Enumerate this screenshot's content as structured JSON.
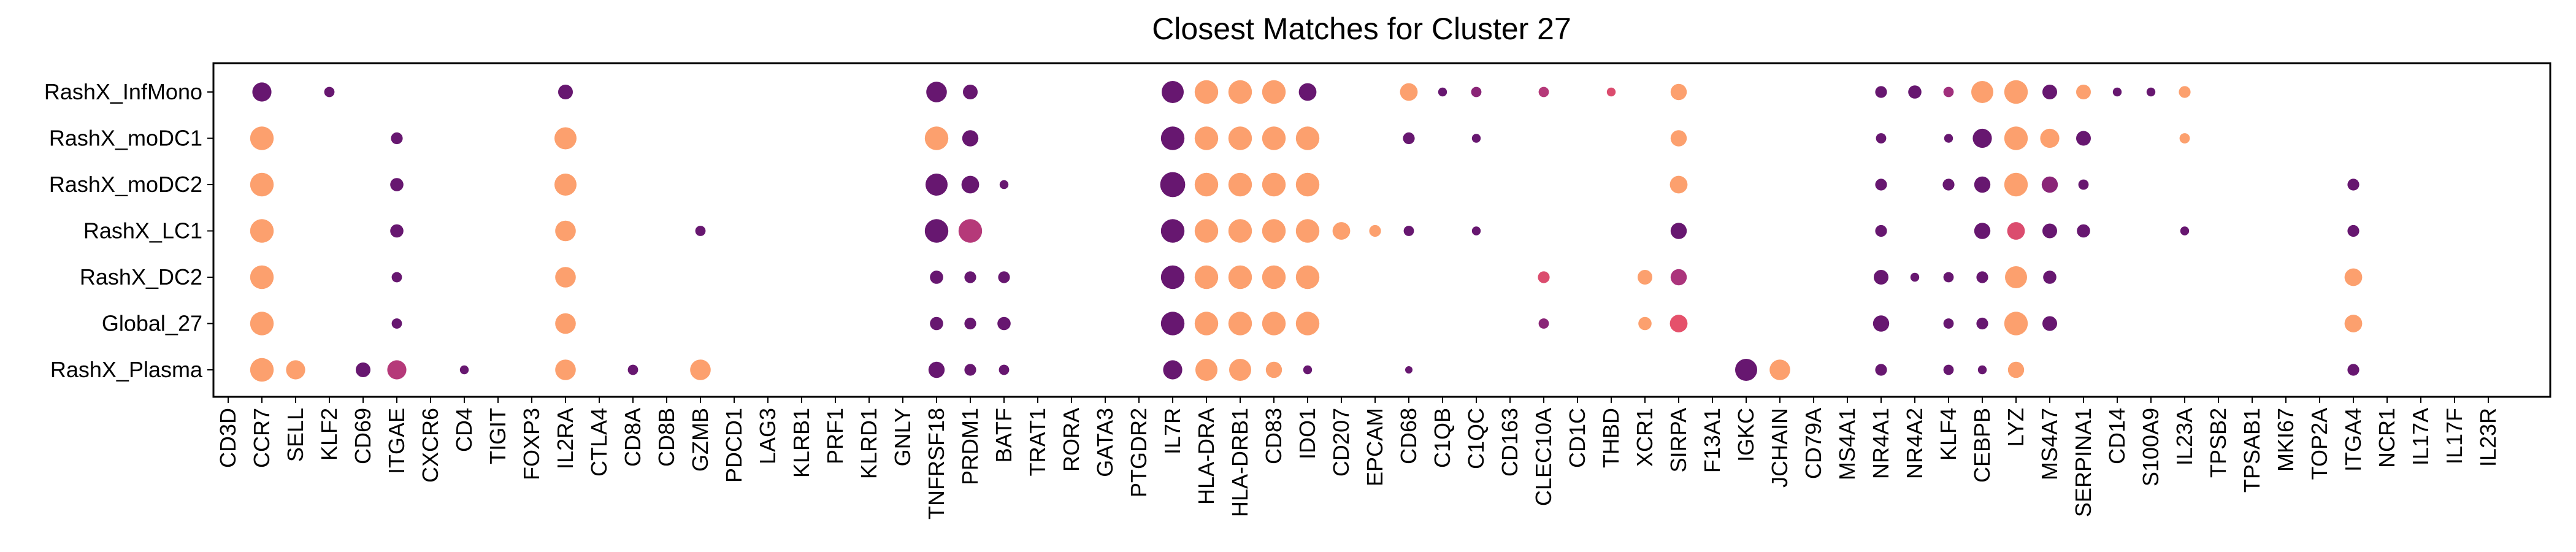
{
  "chart_data": {
    "type": "dotplot",
    "title": "Closest Matches for Cluster 27",
    "xlabel": "",
    "ylabel": "",
    "grid": false,
    "legend": "none",
    "rows": [
      "RashX_InfMono",
      "RashX_moDC1",
      "RashX_moDC2",
      "RashX_LC1",
      "RashX_DC2",
      "Global_27",
      "RashX_Plasma"
    ],
    "columns": [
      "CD3D",
      "CCR7",
      "SELL",
      "KLF2",
      "CD69",
      "ITGAE",
      "CXCR6",
      "CD4",
      "TIGIT",
      "FOXP3",
      "IL2RA",
      "CTLA4",
      "CD8A",
      "CD8B",
      "GZMB",
      "PDCD1",
      "LAG3",
      "KLRB1",
      "PRF1",
      "KLRD1",
      "GNLY",
      "TNFRSF18",
      "PRDM1",
      "BATF",
      "TRAT1",
      "RORA",
      "GATA3",
      "PTGDR2",
      "IL7R",
      "HLA-DRA",
      "HLA-DRB1",
      "CD83",
      "IDO1",
      "CD207",
      "EPCAM",
      "CD68",
      "C1QB",
      "C1QC",
      "CD163",
      "CLEC10A",
      "CD1C",
      "THBD",
      "XCR1",
      "SIRPA",
      "F13A1",
      "IGKC",
      "JCHAIN",
      "CD79A",
      "MS4A1",
      "NR4A1",
      "NR4A2",
      "KLF4",
      "CEBPB",
      "LYZ",
      "MS4A7",
      "SERPINA1",
      "CD14",
      "S100A9",
      "IL23A",
      "TPSB2",
      "TPSAB1",
      "MKI67",
      "TOP2A",
      "ITGA4",
      "NCR1",
      "IL17A",
      "IL17F",
      "IL23R"
    ],
    "color_scale": [
      "#5c126e",
      "#a8327d",
      "#e8536a",
      "#fca06e"
    ],
    "points": [
      {
        "row": "RashX_InfMono",
        "col": "CCR7",
        "size": 0.65,
        "color": 0.05
      },
      {
        "row": "RashX_InfMono",
        "col": "KLF2",
        "size": 0.35,
        "color": 0.05
      },
      {
        "row": "RashX_InfMono",
        "col": "IL2RA",
        "size": 0.5,
        "color": 0.05
      },
      {
        "row": "RashX_InfMono",
        "col": "TNFRSF18",
        "size": 0.7,
        "color": 0.05
      },
      {
        "row": "RashX_InfMono",
        "col": "PRDM1",
        "size": 0.5,
        "color": 0.05
      },
      {
        "row": "RashX_InfMono",
        "col": "IL7R",
        "size": 0.75,
        "color": 0.05
      },
      {
        "row": "RashX_InfMono",
        "col": "HLA-DRA",
        "size": 0.8,
        "color": 1.0
      },
      {
        "row": "RashX_InfMono",
        "col": "HLA-DRB1",
        "size": 0.8,
        "color": 1.0
      },
      {
        "row": "RashX_InfMono",
        "col": "CD83",
        "size": 0.8,
        "color": 1.0
      },
      {
        "row": "RashX_InfMono",
        "col": "IDO1",
        "size": 0.6,
        "color": 0.05
      },
      {
        "row": "RashX_InfMono",
        "col": "CD68",
        "size": 0.6,
        "color": 1.0
      },
      {
        "row": "RashX_InfMono",
        "col": "C1QB",
        "size": 0.3,
        "color": 0.05
      },
      {
        "row": "RashX_InfMono",
        "col": "C1QC",
        "size": 0.35,
        "color": 0.2
      },
      {
        "row": "RashX_InfMono",
        "col": "CLEC10A",
        "size": 0.35,
        "color": 0.4
      },
      {
        "row": "RashX_InfMono",
        "col": "THBD",
        "size": 0.3,
        "color": 0.6
      },
      {
        "row": "RashX_InfMono",
        "col": "SIRPA",
        "size": 0.55,
        "color": 1.0
      },
      {
        "row": "RashX_InfMono",
        "col": "NR4A1",
        "size": 0.4,
        "color": 0.05
      },
      {
        "row": "RashX_InfMono",
        "col": "NR4A2",
        "size": 0.45,
        "color": 0.05
      },
      {
        "row": "RashX_InfMono",
        "col": "KLF4",
        "size": 0.35,
        "color": 0.3
      },
      {
        "row": "RashX_InfMono",
        "col": "CEBPB",
        "size": 0.75,
        "color": 1.0
      },
      {
        "row": "RashX_InfMono",
        "col": "LYZ",
        "size": 0.8,
        "color": 1.0
      },
      {
        "row": "RashX_InfMono",
        "col": "MS4A7",
        "size": 0.5,
        "color": 0.05
      },
      {
        "row": "RashX_InfMono",
        "col": "SERPINA1",
        "size": 0.5,
        "color": 1.0
      },
      {
        "row": "RashX_InfMono",
        "col": "CD14",
        "size": 0.3,
        "color": 0.05
      },
      {
        "row": "RashX_InfMono",
        "col": "S100A9",
        "size": 0.3,
        "color": 0.05
      },
      {
        "row": "RashX_InfMono",
        "col": "IL23A",
        "size": 0.4,
        "color": 1.0
      },
      {
        "row": "RashX_moDC1",
        "col": "CCR7",
        "size": 0.8,
        "color": 1.0
      },
      {
        "row": "RashX_moDC1",
        "col": "ITGAE",
        "size": 0.4,
        "color": 0.05
      },
      {
        "row": "RashX_moDC1",
        "col": "IL2RA",
        "size": 0.75,
        "color": 1.0
      },
      {
        "row": "RashX_moDC1",
        "col": "TNFRSF18",
        "size": 0.8,
        "color": 1.0
      },
      {
        "row": "RashX_moDC1",
        "col": "PRDM1",
        "size": 0.55,
        "color": 0.05
      },
      {
        "row": "RashX_moDC1",
        "col": "IL7R",
        "size": 0.8,
        "color": 0.05
      },
      {
        "row": "RashX_moDC1",
        "col": "HLA-DRA",
        "size": 0.8,
        "color": 1.0
      },
      {
        "row": "RashX_moDC1",
        "col": "HLA-DRB1",
        "size": 0.8,
        "color": 1.0
      },
      {
        "row": "RashX_moDC1",
        "col": "CD83",
        "size": 0.8,
        "color": 1.0
      },
      {
        "row": "RashX_moDC1",
        "col": "IDO1",
        "size": 0.8,
        "color": 1.0
      },
      {
        "row": "RashX_moDC1",
        "col": "CD68",
        "size": 0.4,
        "color": 0.05
      },
      {
        "row": "RashX_moDC1",
        "col": "C1QC",
        "size": 0.3,
        "color": 0.05
      },
      {
        "row": "RashX_moDC1",
        "col": "SIRPA",
        "size": 0.55,
        "color": 1.0
      },
      {
        "row": "RashX_moDC1",
        "col": "NR4A1",
        "size": 0.35,
        "color": 0.05
      },
      {
        "row": "RashX_moDC1",
        "col": "KLF4",
        "size": 0.3,
        "color": 0.05
      },
      {
        "row": "RashX_moDC1",
        "col": "CEBPB",
        "size": 0.65,
        "color": 0.05
      },
      {
        "row": "RashX_moDC1",
        "col": "LYZ",
        "size": 0.8,
        "color": 1.0
      },
      {
        "row": "RashX_moDC1",
        "col": "MS4A7",
        "size": 0.65,
        "color": 1.0
      },
      {
        "row": "RashX_moDC1",
        "col": "SERPINA1",
        "size": 0.5,
        "color": 0.05
      },
      {
        "row": "RashX_moDC1",
        "col": "IL23A",
        "size": 0.35,
        "color": 1.0
      },
      {
        "row": "RashX_moDC2",
        "col": "CCR7",
        "size": 0.8,
        "color": 1.0
      },
      {
        "row": "RashX_moDC2",
        "col": "ITGAE",
        "size": 0.45,
        "color": 0.05
      },
      {
        "row": "RashX_moDC2",
        "col": "IL2RA",
        "size": 0.75,
        "color": 1.0
      },
      {
        "row": "RashX_moDC2",
        "col": "TNFRSF18",
        "size": 0.75,
        "color": 0.05
      },
      {
        "row": "RashX_moDC2",
        "col": "PRDM1",
        "size": 0.6,
        "color": 0.05
      },
      {
        "row": "RashX_moDC2",
        "col": "BATF",
        "size": 0.3,
        "color": 0.05
      },
      {
        "row": "RashX_moDC2",
        "col": "IL7R",
        "size": 0.85,
        "color": 0.05
      },
      {
        "row": "RashX_moDC2",
        "col": "HLA-DRA",
        "size": 0.8,
        "color": 1.0
      },
      {
        "row": "RashX_moDC2",
        "col": "HLA-DRB1",
        "size": 0.8,
        "color": 1.0
      },
      {
        "row": "RashX_moDC2",
        "col": "CD83",
        "size": 0.8,
        "color": 1.0
      },
      {
        "row": "RashX_moDC2",
        "col": "IDO1",
        "size": 0.8,
        "color": 1.0
      },
      {
        "row": "RashX_moDC2",
        "col": "SIRPA",
        "size": 0.6,
        "color": 1.0
      },
      {
        "row": "RashX_moDC2",
        "col": "NR4A1",
        "size": 0.4,
        "color": 0.05
      },
      {
        "row": "RashX_moDC2",
        "col": "KLF4",
        "size": 0.4,
        "color": 0.05
      },
      {
        "row": "RashX_moDC2",
        "col": "CEBPB",
        "size": 0.55,
        "color": 0.05
      },
      {
        "row": "RashX_moDC2",
        "col": "LYZ",
        "size": 0.8,
        "color": 1.0
      },
      {
        "row": "RashX_moDC2",
        "col": "MS4A7",
        "size": 0.55,
        "color": 0.2
      },
      {
        "row": "RashX_moDC2",
        "col": "SERPINA1",
        "size": 0.35,
        "color": 0.05
      },
      {
        "row": "RashX_moDC2",
        "col": "ITGA4",
        "size": 0.4,
        "color": 0.05
      },
      {
        "row": "RashX_LC1",
        "col": "CCR7",
        "size": 0.8,
        "color": 1.0
      },
      {
        "row": "RashX_LC1",
        "col": "ITGAE",
        "size": 0.45,
        "color": 0.05
      },
      {
        "row": "RashX_LC1",
        "col": "IL2RA",
        "size": 0.7,
        "color": 1.0
      },
      {
        "row": "RashX_LC1",
        "col": "GZMB",
        "size": 0.35,
        "color": 0.05
      },
      {
        "row": "RashX_LC1",
        "col": "TNFRSF18",
        "size": 0.8,
        "color": 0.05
      },
      {
        "row": "RashX_LC1",
        "col": "PRDM1",
        "size": 0.8,
        "color": 0.4
      },
      {
        "row": "RashX_LC1",
        "col": "IL7R",
        "size": 0.8,
        "color": 0.05
      },
      {
        "row": "RashX_LC1",
        "col": "HLA-DRA",
        "size": 0.8,
        "color": 1.0
      },
      {
        "row": "RashX_LC1",
        "col": "HLA-DRB1",
        "size": 0.8,
        "color": 1.0
      },
      {
        "row": "RashX_LC1",
        "col": "CD83",
        "size": 0.8,
        "color": 1.0
      },
      {
        "row": "RashX_LC1",
        "col": "IDO1",
        "size": 0.8,
        "color": 1.0
      },
      {
        "row": "RashX_LC1",
        "col": "CD207",
        "size": 0.6,
        "color": 1.0
      },
      {
        "row": "RashX_LC1",
        "col": "EPCAM",
        "size": 0.4,
        "color": 1.0
      },
      {
        "row": "RashX_LC1",
        "col": "CD68",
        "size": 0.35,
        "color": 0.05
      },
      {
        "row": "RashX_LC1",
        "col": "C1QC",
        "size": 0.3,
        "color": 0.05
      },
      {
        "row": "RashX_LC1",
        "col": "SIRPA",
        "size": 0.55,
        "color": 0.05
      },
      {
        "row": "RashX_LC1",
        "col": "NR4A1",
        "size": 0.4,
        "color": 0.05
      },
      {
        "row": "RashX_LC1",
        "col": "CEBPB",
        "size": 0.55,
        "color": 0.05
      },
      {
        "row": "RashX_LC1",
        "col": "LYZ",
        "size": 0.6,
        "color": 0.6
      },
      {
        "row": "RashX_LC1",
        "col": "MS4A7",
        "size": 0.5,
        "color": 0.05
      },
      {
        "row": "RashX_LC1",
        "col": "SERPINA1",
        "size": 0.45,
        "color": 0.05
      },
      {
        "row": "RashX_LC1",
        "col": "IL23A",
        "size": 0.3,
        "color": 0.05
      },
      {
        "row": "RashX_LC1",
        "col": "ITGA4",
        "size": 0.4,
        "color": 0.05
      },
      {
        "row": "RashX_DC2",
        "col": "CCR7",
        "size": 0.8,
        "color": 1.0
      },
      {
        "row": "RashX_DC2",
        "col": "ITGAE",
        "size": 0.35,
        "color": 0.05
      },
      {
        "row": "RashX_DC2",
        "col": "IL2RA",
        "size": 0.7,
        "color": 1.0
      },
      {
        "row": "RashX_DC2",
        "col": "TNFRSF18",
        "size": 0.45,
        "color": 0.05
      },
      {
        "row": "RashX_DC2",
        "col": "PRDM1",
        "size": 0.4,
        "color": 0.05
      },
      {
        "row": "RashX_DC2",
        "col": "BATF",
        "size": 0.4,
        "color": 0.05
      },
      {
        "row": "RashX_DC2",
        "col": "IL7R",
        "size": 0.8,
        "color": 0.05
      },
      {
        "row": "RashX_DC2",
        "col": "HLA-DRA",
        "size": 0.8,
        "color": 1.0
      },
      {
        "row": "RashX_DC2",
        "col": "HLA-DRB1",
        "size": 0.8,
        "color": 1.0
      },
      {
        "row": "RashX_DC2",
        "col": "CD83",
        "size": 0.8,
        "color": 1.0
      },
      {
        "row": "RashX_DC2",
        "col": "IDO1",
        "size": 0.8,
        "color": 1.0
      },
      {
        "row": "RashX_DC2",
        "col": "CLEC10A",
        "size": 0.4,
        "color": 0.6
      },
      {
        "row": "RashX_DC2",
        "col": "XCR1",
        "size": 0.5,
        "color": 1.0
      },
      {
        "row": "RashX_DC2",
        "col": "SIRPA",
        "size": 0.55,
        "color": 0.35
      },
      {
        "row": "RashX_DC2",
        "col": "NR4A1",
        "size": 0.5,
        "color": 0.05
      },
      {
        "row": "RashX_DC2",
        "col": "NR4A2",
        "size": 0.3,
        "color": 0.05
      },
      {
        "row": "RashX_DC2",
        "col": "KLF4",
        "size": 0.35,
        "color": 0.05
      },
      {
        "row": "RashX_DC2",
        "col": "CEBPB",
        "size": 0.4,
        "color": 0.05
      },
      {
        "row": "RashX_DC2",
        "col": "LYZ",
        "size": 0.75,
        "color": 1.0
      },
      {
        "row": "RashX_DC2",
        "col": "MS4A7",
        "size": 0.45,
        "color": 0.05
      },
      {
        "row": "RashX_DC2",
        "col": "ITGA4",
        "size": 0.6,
        "color": 1.0
      },
      {
        "row": "Global_27",
        "col": "CCR7",
        "size": 0.8,
        "color": 1.0
      },
      {
        "row": "Global_27",
        "col": "ITGAE",
        "size": 0.35,
        "color": 0.05
      },
      {
        "row": "Global_27",
        "col": "IL2RA",
        "size": 0.7,
        "color": 1.0
      },
      {
        "row": "Global_27",
        "col": "TNFRSF18",
        "size": 0.45,
        "color": 0.05
      },
      {
        "row": "Global_27",
        "col": "PRDM1",
        "size": 0.4,
        "color": 0.05
      },
      {
        "row": "Global_27",
        "col": "BATF",
        "size": 0.45,
        "color": 0.05
      },
      {
        "row": "Global_27",
        "col": "IL7R",
        "size": 0.8,
        "color": 0.05
      },
      {
        "row": "Global_27",
        "col": "HLA-DRA",
        "size": 0.8,
        "color": 1.0
      },
      {
        "row": "Global_27",
        "col": "HLA-DRB1",
        "size": 0.8,
        "color": 1.0
      },
      {
        "row": "Global_27",
        "col": "CD83",
        "size": 0.8,
        "color": 1.0
      },
      {
        "row": "Global_27",
        "col": "IDO1",
        "size": 0.8,
        "color": 1.0
      },
      {
        "row": "Global_27",
        "col": "CLEC10A",
        "size": 0.35,
        "color": 0.2
      },
      {
        "row": "Global_27",
        "col": "XCR1",
        "size": 0.45,
        "color": 1.0
      },
      {
        "row": "Global_27",
        "col": "SIRPA",
        "size": 0.6,
        "color": 0.65
      },
      {
        "row": "Global_27",
        "col": "NR4A1",
        "size": 0.55,
        "color": 0.05
      },
      {
        "row": "Global_27",
        "col": "KLF4",
        "size": 0.35,
        "color": 0.05
      },
      {
        "row": "Global_27",
        "col": "CEBPB",
        "size": 0.4,
        "color": 0.05
      },
      {
        "row": "Global_27",
        "col": "LYZ",
        "size": 0.8,
        "color": 1.0
      },
      {
        "row": "Global_27",
        "col": "MS4A7",
        "size": 0.5,
        "color": 0.05
      },
      {
        "row": "Global_27",
        "col": "ITGA4",
        "size": 0.6,
        "color": 1.0
      },
      {
        "row": "RashX_Plasma",
        "col": "CCR7",
        "size": 0.8,
        "color": 1.0
      },
      {
        "row": "RashX_Plasma",
        "col": "SELL",
        "size": 0.65,
        "color": 1.0
      },
      {
        "row": "RashX_Plasma",
        "col": "CD69",
        "size": 0.5,
        "color": 0.05
      },
      {
        "row": "RashX_Plasma",
        "col": "ITGAE",
        "size": 0.65,
        "color": 0.4
      },
      {
        "row": "RashX_Plasma",
        "col": "CD4",
        "size": 0.3,
        "color": 0.05
      },
      {
        "row": "RashX_Plasma",
        "col": "IL2RA",
        "size": 0.7,
        "color": 1.0
      },
      {
        "row": "RashX_Plasma",
        "col": "CD8A",
        "size": 0.35,
        "color": 0.05
      },
      {
        "row": "RashX_Plasma",
        "col": "GZMB",
        "size": 0.7,
        "color": 1.0
      },
      {
        "row": "RashX_Plasma",
        "col": "TNFRSF18",
        "size": 0.55,
        "color": 0.05
      },
      {
        "row": "RashX_Plasma",
        "col": "PRDM1",
        "size": 0.4,
        "color": 0.05
      },
      {
        "row": "RashX_Plasma",
        "col": "BATF",
        "size": 0.35,
        "color": 0.05
      },
      {
        "row": "RashX_Plasma",
        "col": "IL7R",
        "size": 0.65,
        "color": 0.05
      },
      {
        "row": "RashX_Plasma",
        "col": "HLA-DRA",
        "size": 0.75,
        "color": 1.0
      },
      {
        "row": "RashX_Plasma",
        "col": "HLA-DRB1",
        "size": 0.75,
        "color": 1.0
      },
      {
        "row": "RashX_Plasma",
        "col": "CD83",
        "size": 0.55,
        "color": 1.0
      },
      {
        "row": "RashX_Plasma",
        "col": "IDO1",
        "size": 0.3,
        "color": 0.05
      },
      {
        "row": "RashX_Plasma",
        "col": "CD68",
        "size": 0.25,
        "color": 0.05
      },
      {
        "row": "RashX_Plasma",
        "col": "IGKC",
        "size": 0.75,
        "color": 0.05
      },
      {
        "row": "RashX_Plasma",
        "col": "JCHAIN",
        "size": 0.7,
        "color": 1.0
      },
      {
        "row": "RashX_Plasma",
        "col": "NR4A1",
        "size": 0.4,
        "color": 0.05
      },
      {
        "row": "RashX_Plasma",
        "col": "KLF4",
        "size": 0.35,
        "color": 0.05
      },
      {
        "row": "RashX_Plasma",
        "col": "CEBPB",
        "size": 0.3,
        "color": 0.05
      },
      {
        "row": "RashX_Plasma",
        "col": "LYZ",
        "size": 0.55,
        "color": 1.0
      },
      {
        "row": "RashX_Plasma",
        "col": "ITGA4",
        "size": 0.4,
        "color": 0.05
      }
    ]
  }
}
